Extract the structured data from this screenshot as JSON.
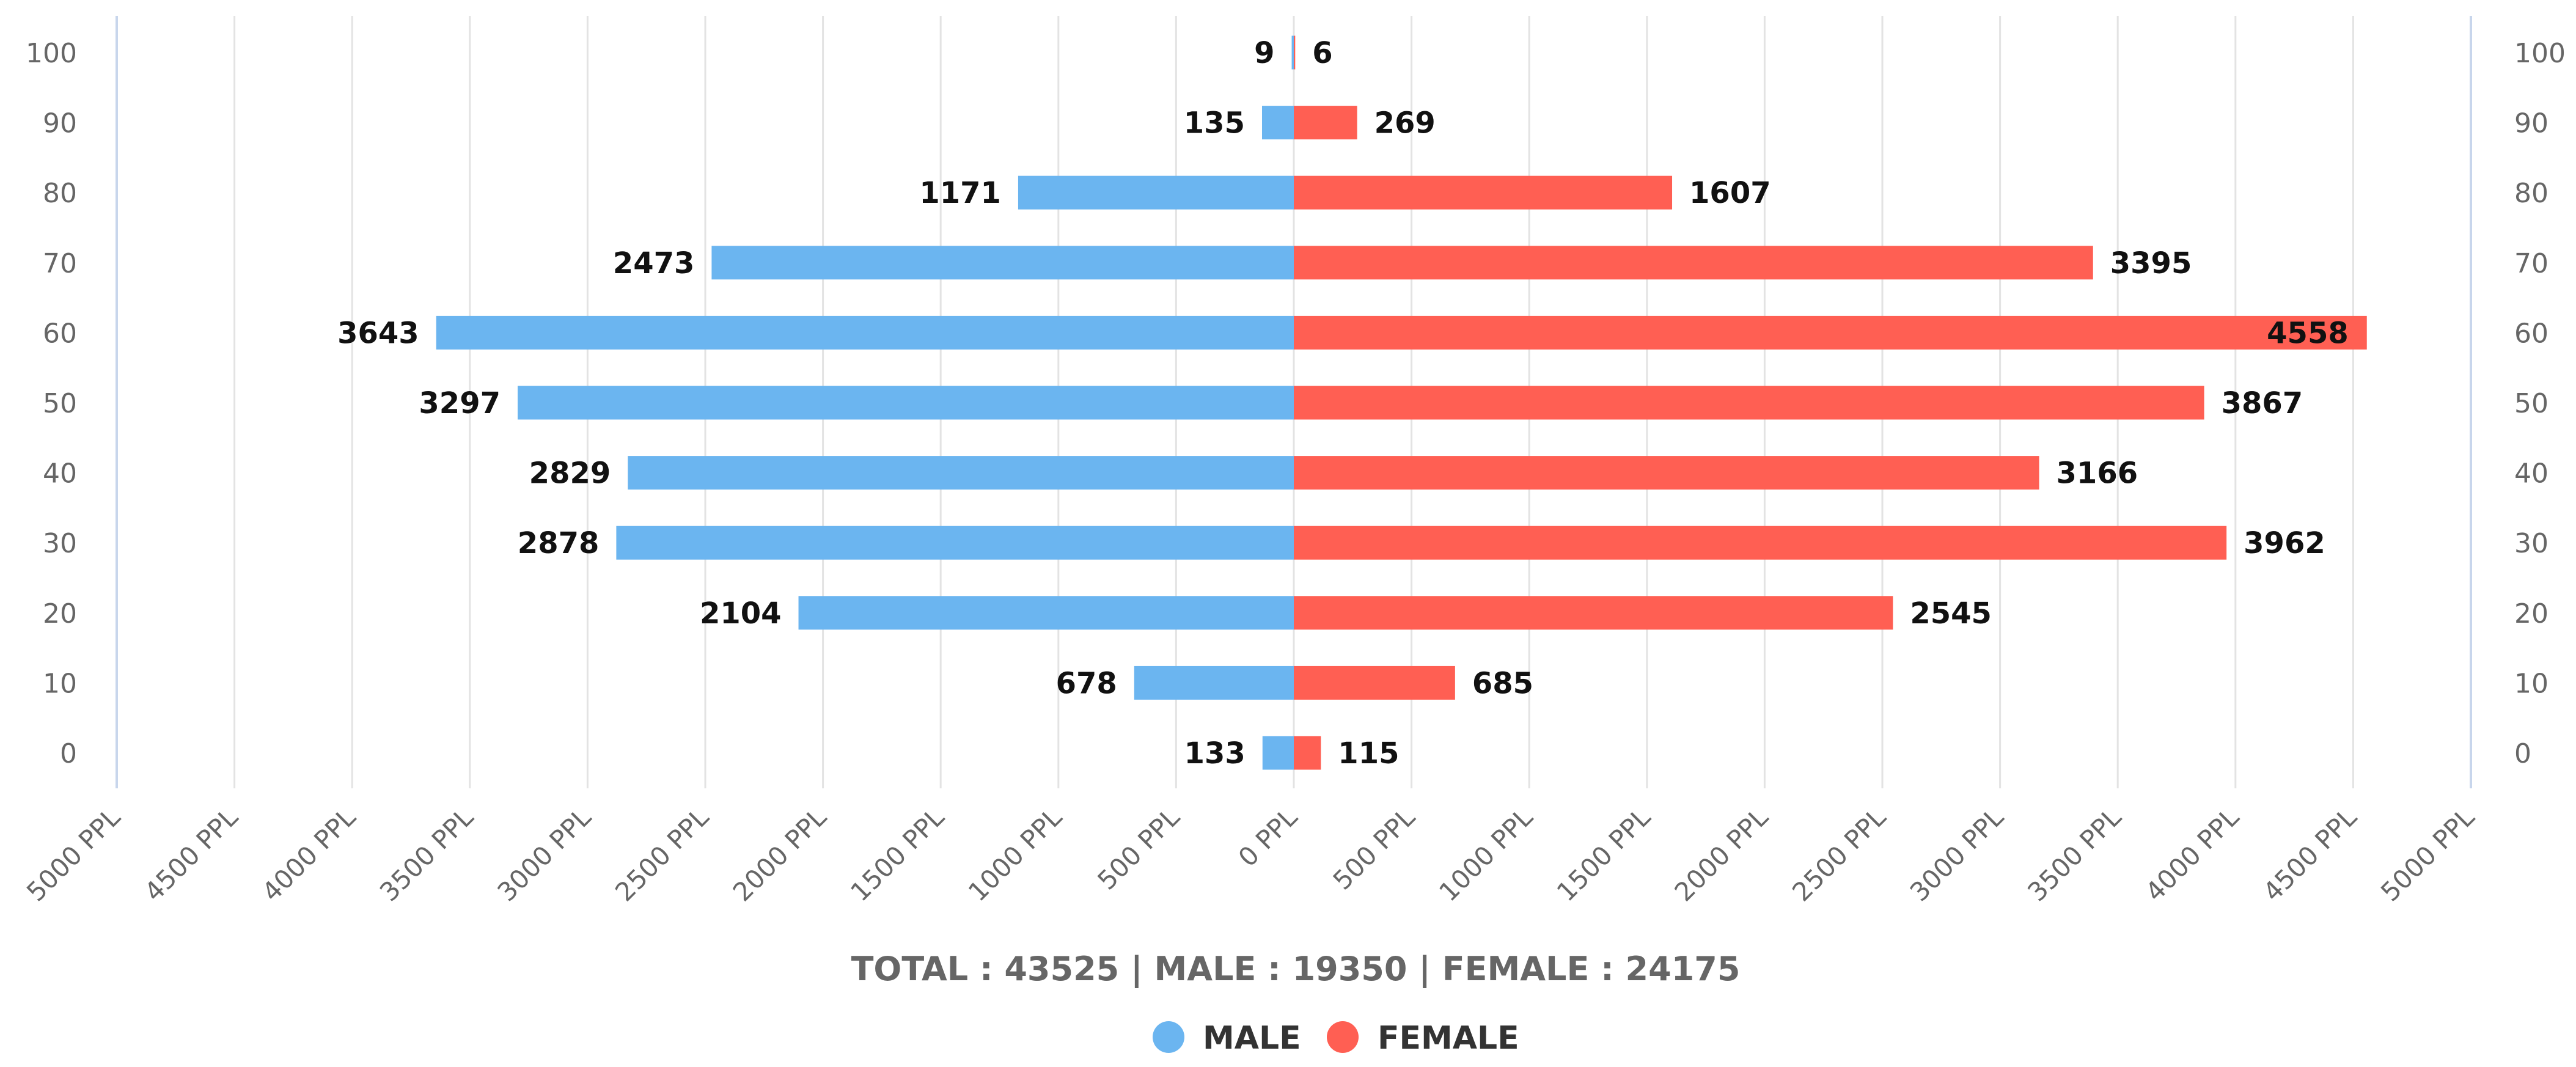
{
  "chart_data": {
    "type": "bar",
    "orientation": "horizontal-population-pyramid",
    "categories": [
      "100",
      "90",
      "80",
      "70",
      "60",
      "50",
      "40",
      "30",
      "20",
      "10",
      "0"
    ],
    "series": [
      {
        "name": "MALE",
        "color": "#6bb5f0",
        "values": [
          9,
          135,
          1171,
          2473,
          3643,
          3297,
          2829,
          2878,
          2104,
          678,
          133
        ]
      },
      {
        "name": "FEMALE",
        "color": "#ff5f53",
        "values": [
          6,
          269,
          1607,
          3395,
          4558,
          3867,
          3166,
          3962,
          2545,
          685,
          115
        ]
      }
    ],
    "x_ticks": [
      "5000 PPL",
      "4500 PPL",
      "4000 PPL",
      "3500 PPL",
      "3000 PPL",
      "2500 PPL",
      "2000 PPL",
      "1500 PPL",
      "1000 PPL",
      "500 PPL",
      "0 PPL",
      "500 PPL",
      "1000 PPL",
      "1500 PPL",
      "2000 PPL",
      "2500 PPL",
      "3000 PPL",
      "3500 PPL",
      "4000 PPL",
      "4500 PPL",
      "5000 PPL"
    ],
    "xlim": [
      -5000,
      5000
    ],
    "summary": "TOTAL : 43525 | MALE : 19350 | FEMALE : 24175",
    "legend": [
      "MALE",
      "FEMALE"
    ],
    "legend_position": "bottom-center",
    "grid": true
  }
}
